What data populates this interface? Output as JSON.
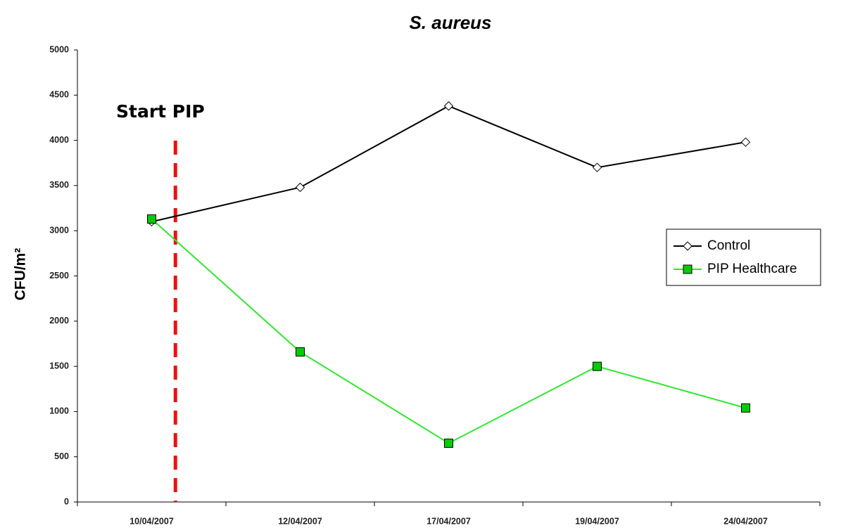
{
  "chart_data": {
    "type": "line",
    "title": "S. aureus",
    "ylabel": "CFU/m²",
    "categories": [
      "10/04/2007",
      "12/04/2007",
      "17/04/2007",
      "19/04/2007",
      "24/04/2007"
    ],
    "series": [
      {
        "name": "Control",
        "color": "#000000",
        "marker": "diamond",
        "marker_fill": "#ffffff",
        "values": [
          3100,
          3480,
          4380,
          3700,
          3980
        ]
      },
      {
        "name": "PIP Healthcare",
        "color": "#33e633",
        "marker": "square",
        "marker_fill": "#00cc00",
        "values": [
          3130,
          1660,
          650,
          1500,
          1040
        ]
      }
    ],
    "ylim": [
      0,
      5000
    ],
    "yticks": [
      0,
      500,
      1000,
      1500,
      2000,
      2500,
      3000,
      3500,
      4000,
      4500,
      5000
    ],
    "annotation": {
      "text": "Start PIP",
      "color": "#ee1111"
    },
    "legend": "right",
    "grid": false
  }
}
